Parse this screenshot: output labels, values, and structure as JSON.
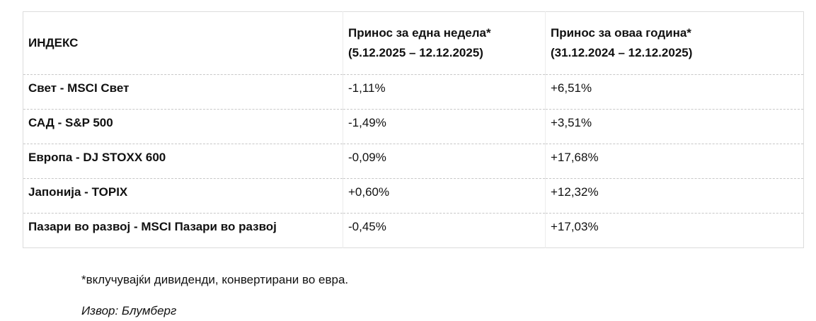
{
  "table": {
    "header": [
      {
        "title": "ИНДЕКС"
      },
      {
        "title": "Принос за една недела*",
        "period": "(5.12.2025 – 12.12.2025)"
      },
      {
        "title": "Принос за оваа година*",
        "period": "(31.12.2024 – 12.12.2025)"
      }
    ],
    "rows": [
      [
        "Свет - MSCI Свет",
        "-1,11%",
        "+6,51%"
      ],
      [
        "САД - S&P 500",
        "-1,49%",
        "+3,51%"
      ],
      [
        "Европа - DJ STOXX 600",
        "-0,09%",
        "+17,68%"
      ],
      [
        "Јапонија - TOPIX",
        "+0,60%",
        "+12,32%"
      ],
      [
        "Пазари во развој - MSCI Пазари во развој",
        "-0,45%",
        "+17,03%"
      ]
    ]
  },
  "footnote": "*вклучувајќи дивиденди, конвертирани во евра.",
  "source": "Извор: Блумберг"
}
